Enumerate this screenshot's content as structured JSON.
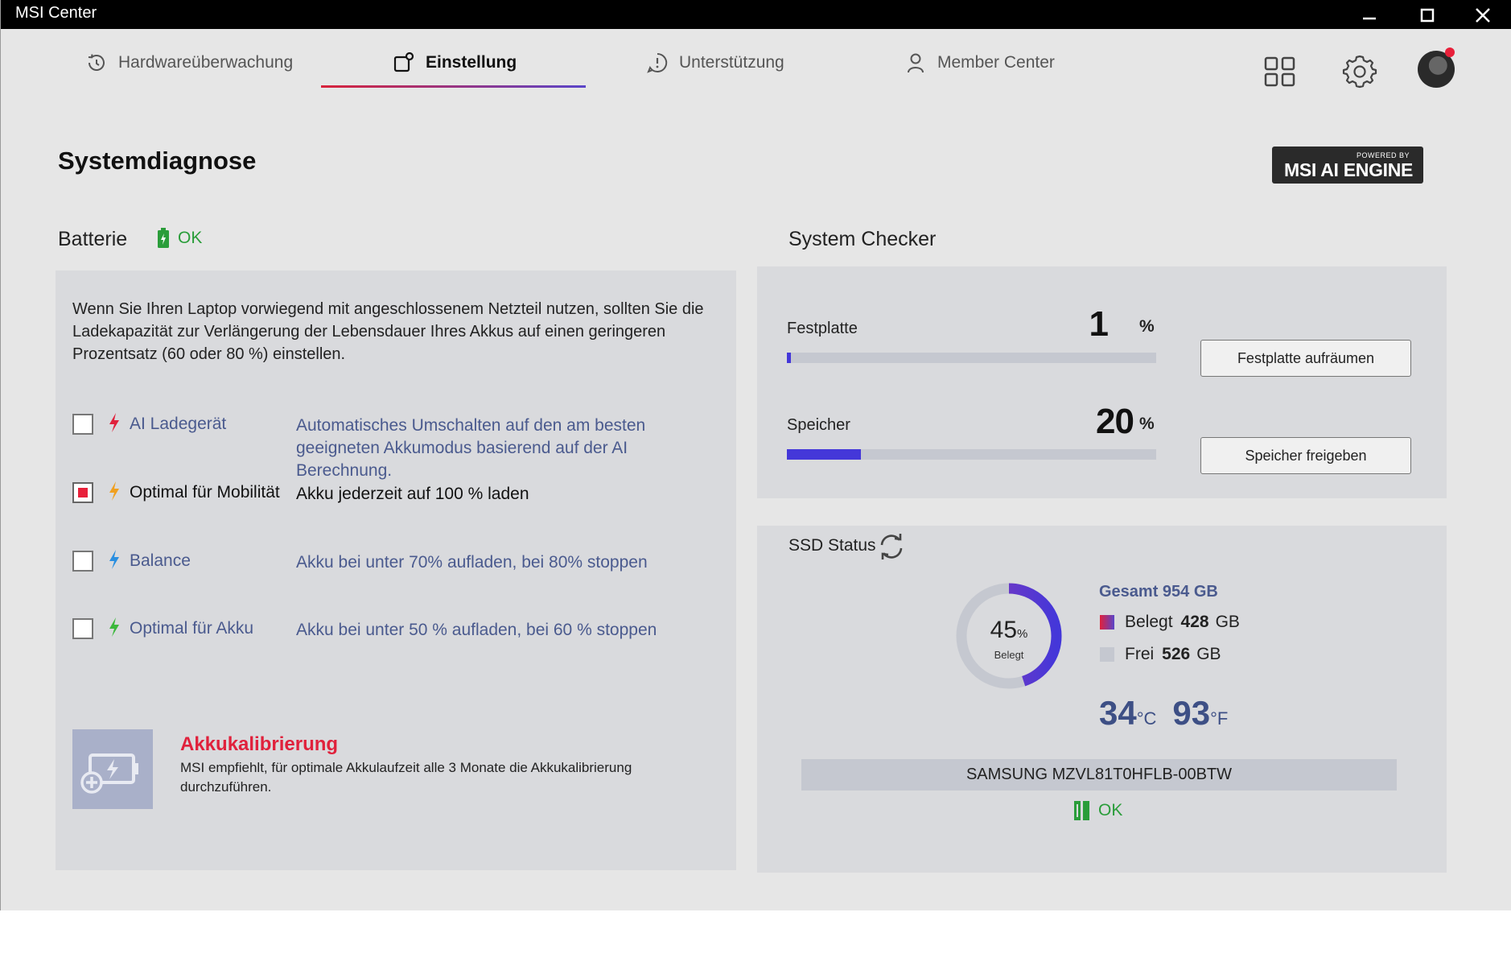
{
  "window": {
    "title": "MSI Center"
  },
  "nav": {
    "tabs": [
      {
        "label": "Hardwareüberwachung"
      },
      {
        "label": "Einstellung"
      },
      {
        "label": "Unterstützung"
      },
      {
        "label": "Member Center"
      }
    ],
    "active_tab": "Einstellung"
  },
  "page": {
    "title": "Systemdiagnose",
    "badge": {
      "powered_by": "POWERED BY",
      "name": "MSI AI ENGINE"
    }
  },
  "battery": {
    "title": "Batterie",
    "status": "OK",
    "description": "Wenn Sie Ihren Laptop vorwiegend mit angeschlossenem Netzteil nutzen, sollten Sie die Ladekapazität zur Verlängerung der Lebensdauer Ihres Akkus auf einen geringeren Prozentsatz (60 oder 80 %) einstellen.",
    "options": [
      {
        "name": "AI Ladegerät",
        "description": "Automatisches Umschalten auf den am besten geeigneten Akkumodus basierend auf der AI Berechnung.",
        "checked": false,
        "bolt_color": "#e0213c"
      },
      {
        "name": "Optimal für Mobilität",
        "description": "Akku jederzeit auf 100 % laden",
        "checked": true,
        "bolt_color": "#f0a020"
      },
      {
        "name": "Balance",
        "description": "Akku bei unter 70% aufladen, bei 80% stoppen",
        "checked": false,
        "bolt_color": "#2a8fe0"
      },
      {
        "name": "Optimal für Akku",
        "description": "Akku bei unter 50 % aufladen, bei 60 % stoppen",
        "checked": false,
        "bolt_color": "#3cb83c"
      }
    ],
    "calibration": {
      "title": "Akkukalibrierung",
      "text": "MSI empfiehlt, für optimale Akkulaufzeit alle 3 Monate die Akkukalibrierung durchzuführen."
    }
  },
  "system_checker": {
    "title": "System Checker",
    "disk": {
      "label": "Festplatte",
      "value": "1",
      "unit": "%",
      "fraction": 0.01,
      "button": "Festplatte aufräumen"
    },
    "memory": {
      "label": "Speicher",
      "value": "20",
      "unit": "%",
      "fraction": 0.2,
      "button": "Speicher freigeben"
    }
  },
  "ssd": {
    "title": "SSD Status",
    "used_percent": "45",
    "percent_sign": "%",
    "used_label": "Belegt",
    "used_fraction": 0.45,
    "total": "Gesamt 954 GB",
    "used": {
      "label": "Belegt",
      "value": "428",
      "unit": "GB"
    },
    "free": {
      "label": "Frei",
      "value": "526",
      "unit": "GB"
    },
    "temp_c": "34",
    "unit_c": "°C",
    "temp_f": "93",
    "unit_f": "°F",
    "model": "SAMSUNG MZVL81T0HFLB-00BTW",
    "status": "OK"
  },
  "colors": {
    "accent_red": "#e8203a",
    "accent_blue": "#4437d9",
    "ok_green": "#2a9d3a",
    "link_blue": "#4a5a8e"
  }
}
